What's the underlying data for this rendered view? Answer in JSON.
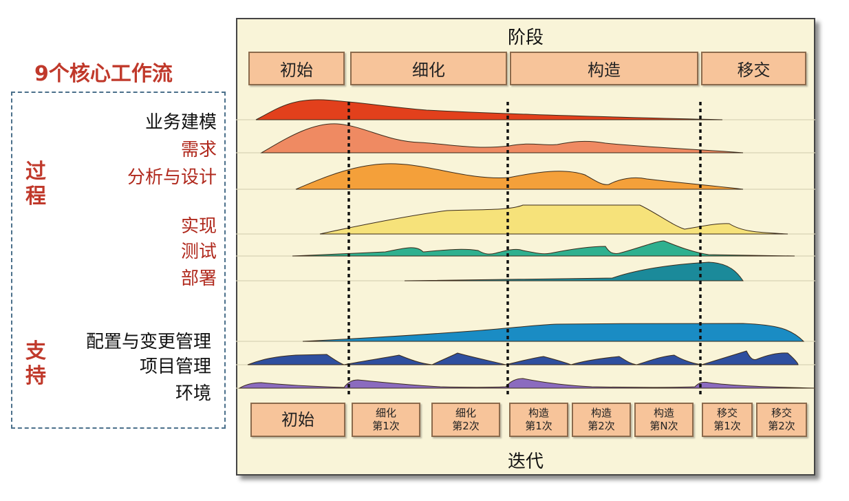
{
  "heading": "9个核心工作流",
  "categories": {
    "process": "过程",
    "support": "支持"
  },
  "workflows": [
    {
      "label": "业务建模",
      "color": "#111111"
    },
    {
      "label": "需求",
      "color": "#b0291d"
    },
    {
      "label": "分析与设计",
      "color": "#b0291d"
    },
    {
      "label": "实现",
      "color": "#b0291d"
    },
    {
      "label": "测试",
      "color": "#b0291d"
    },
    {
      "label": "部署",
      "color": "#b0291d"
    },
    {
      "label": "配置与变更管理",
      "color": "#111111"
    },
    {
      "label": "项目管理",
      "color": "#111111"
    },
    {
      "label": "环境",
      "color": "#111111"
    }
  ],
  "panel": {
    "top_title": "阶段",
    "bottom_title": "迭代"
  },
  "phases": [
    "初始",
    "细化",
    "构造",
    "移交"
  ],
  "iterations": [
    {
      "line1": "初始",
      "line2": ""
    },
    {
      "line1": "细化",
      "line2": "第1次"
    },
    {
      "line1": "细化",
      "line2": "第2次"
    },
    {
      "line1": "构造",
      "line2": "第1次"
    },
    {
      "line1": "构造",
      "line2": "第2次"
    },
    {
      "line1": "构造",
      "line2": "第N次"
    },
    {
      "line1": "移交",
      "line2": "第1次"
    },
    {
      "line1": "移交",
      "line2": "第2次"
    }
  ],
  "colors": {
    "business_modeling": "#e2401c",
    "requirements": "#ef8a62",
    "analysis_design": "#f4a03a",
    "implementation": "#f6e27a",
    "test": "#2fb08f",
    "deployment": "#1b8a9a",
    "config_change": "#1a8cc4",
    "project_mgmt": "#2f4f9f",
    "environment": "#8b6bbf"
  }
}
